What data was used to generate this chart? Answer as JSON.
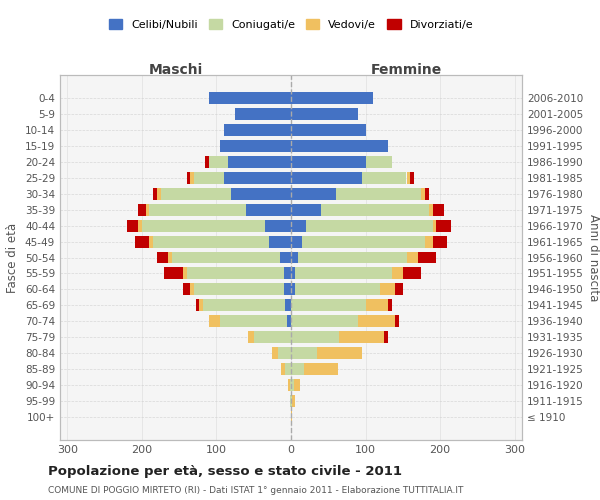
{
  "age_groups": [
    "100+",
    "95-99",
    "90-94",
    "85-89",
    "80-84",
    "75-79",
    "70-74",
    "65-69",
    "60-64",
    "55-59",
    "50-54",
    "45-49",
    "40-44",
    "35-39",
    "30-34",
    "25-29",
    "20-24",
    "15-19",
    "10-14",
    "5-9",
    "0-4"
  ],
  "birth_years": [
    "≤ 1910",
    "1911-1915",
    "1916-1920",
    "1921-1925",
    "1926-1930",
    "1931-1935",
    "1936-1940",
    "1941-1945",
    "1946-1950",
    "1951-1955",
    "1956-1960",
    "1961-1965",
    "1966-1970",
    "1971-1975",
    "1976-1980",
    "1981-1985",
    "1986-1990",
    "1991-1995",
    "1996-2000",
    "2001-2005",
    "2006-2010"
  ],
  "male": {
    "celibi": [
      0,
      0,
      0,
      0,
      0,
      0,
      5,
      8,
      10,
      10,
      15,
      30,
      35,
      60,
      80,
      90,
      85,
      95,
      90,
      75,
      110
    ],
    "coniugati": [
      0,
      1,
      2,
      8,
      18,
      50,
      90,
      110,
      120,
      130,
      145,
      155,
      165,
      130,
      95,
      40,
      25,
      0,
      0,
      0,
      0
    ],
    "vedovi": [
      0,
      1,
      2,
      5,
      8,
      8,
      15,
      5,
      5,
      5,
      5,
      5,
      5,
      5,
      5,
      5,
      0,
      0,
      0,
      0,
      0
    ],
    "divorziati": [
      0,
      0,
      0,
      0,
      0,
      0,
      0,
      5,
      10,
      25,
      15,
      20,
      15,
      10,
      5,
      5,
      5,
      0,
      0,
      0,
      0
    ]
  },
  "female": {
    "nubili": [
      0,
      0,
      0,
      0,
      0,
      0,
      0,
      0,
      5,
      5,
      10,
      15,
      20,
      40,
      60,
      95,
      100,
      130,
      100,
      90,
      110
    ],
    "coniugate": [
      0,
      2,
      4,
      18,
      35,
      65,
      90,
      100,
      115,
      130,
      145,
      165,
      170,
      145,
      115,
      60,
      35,
      0,
      0,
      0,
      0
    ],
    "vedove": [
      2,
      4,
      8,
      45,
      60,
      60,
      50,
      30,
      20,
      15,
      15,
      10,
      5,
      5,
      5,
      5,
      0,
      0,
      0,
      0,
      0
    ],
    "divorziate": [
      0,
      0,
      0,
      0,
      0,
      5,
      5,
      5,
      10,
      25,
      25,
      20,
      20,
      15,
      5,
      5,
      0,
      0,
      0,
      0,
      0
    ]
  },
  "colors": {
    "celibi": "#4472c4",
    "coniugati": "#c5d9a3",
    "vedovi": "#f0c060",
    "divorziati": "#c00000"
  },
  "xlim": 310,
  "title": "Popolazione per età, sesso e stato civile - 2011",
  "subtitle": "COMUNE DI POGGIO MIRTETO (RI) - Dati ISTAT 1° gennaio 2011 - Elaborazione TUTTITALIA.IT",
  "xlabel_left": "Maschi",
  "xlabel_right": "Femmine",
  "ylabel_left": "Fasce di età",
  "ylabel_right": "Anni di nascita",
  "legend_labels": [
    "Celibi/Nubili",
    "Coniugati/e",
    "Vedovi/e",
    "Divorziati/e"
  ],
  "bg_color": "#ffffff",
  "grid_color": "#cccccc"
}
